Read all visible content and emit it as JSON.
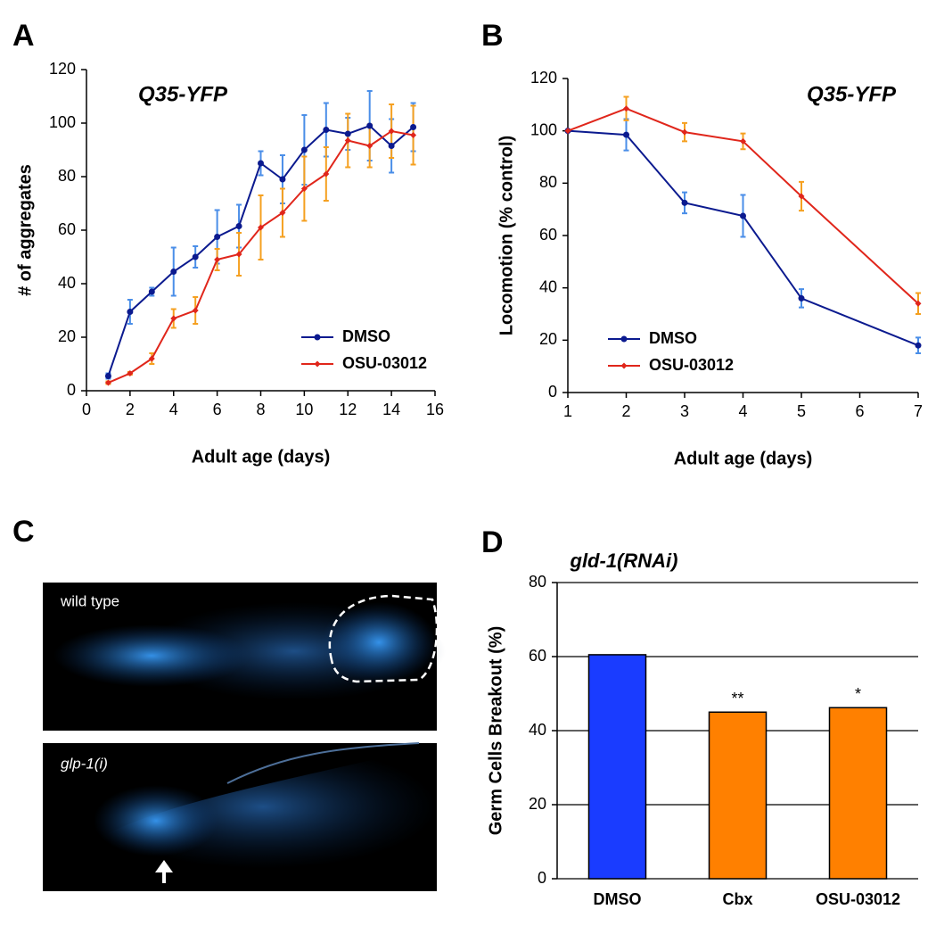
{
  "chart_data": [
    {
      "panel": "A",
      "type": "line",
      "title": "Q35-YFP",
      "x_label": "Adult age (days)",
      "y_label": "# of aggregates",
      "x": [
        1,
        2,
        3,
        4,
        5,
        6,
        7,
        8,
        9,
        10,
        11,
        12,
        13,
        14,
        15
      ],
      "series": [
        {
          "name": "DMSO",
          "color": "#0b1a8f",
          "error_color": "#4a8ee8",
          "marker": "circle",
          "values": [
            5.5,
            29.5,
            37,
            44.5,
            50,
            57.5,
            61.5,
            85,
            79,
            90,
            97.5,
            96,
            99,
            91.5,
            98.5
          ],
          "errors": [
            1,
            4.5,
            1.5,
            9,
            4,
            10,
            8,
            4.5,
            9,
            13,
            10,
            6,
            13,
            10,
            9
          ]
        },
        {
          "name": "OSU-03012",
          "color": "#e0261b",
          "error_color": "#f5a020",
          "marker": "diamond",
          "values": [
            3,
            6.5,
            12,
            27,
            30,
            49,
            51,
            61,
            66.5,
            75.5,
            81,
            93.5,
            91.5,
            97,
            95.5
          ],
          "errors": [
            0.5,
            0.5,
            2,
            3.5,
            5,
            4,
            8,
            12,
            9,
            12,
            10,
            10,
            8,
            10,
            11
          ]
        }
      ],
      "xlim": [
        0,
        16
      ],
      "xticks": [
        0,
        2,
        4,
        6,
        8,
        10,
        12,
        14,
        16
      ],
      "ylim": [
        0,
        120
      ],
      "yticks": [
        0,
        20,
        40,
        60,
        80,
        100,
        120
      ],
      "legend": "lower right"
    },
    {
      "panel": "B",
      "type": "line",
      "title": "Q35-YFP",
      "x_label": "Adult age (days)",
      "y_label": "Locomotion (% control)",
      "x": [
        1,
        2,
        3,
        4,
        5,
        7
      ],
      "series": [
        {
          "name": "DMSO",
          "color": "#0b1a8f",
          "error_color": "#4a8ee8",
          "marker": "circle",
          "values": [
            100,
            98.5,
            72.5,
            67.5,
            36,
            18
          ],
          "errors": [
            0,
            6,
            4,
            8,
            3.5,
            3
          ]
        },
        {
          "name": "OSU-03012",
          "color": "#e0261b",
          "error_color": "#f5a020",
          "marker": "diamond",
          "values": [
            100,
            108.5,
            99.5,
            96,
            75,
            34
          ],
          "errors": [
            0,
            4.5,
            3.5,
            3,
            5.5,
            4
          ]
        }
      ],
      "xlim": [
        1,
        7
      ],
      "xticks": [
        1,
        2,
        3,
        4,
        5,
        6,
        7
      ],
      "ylim": [
        0,
        120
      ],
      "yticks": [
        0,
        20,
        40,
        60,
        80,
        100,
        120
      ],
      "legend": "lower left"
    },
    {
      "panel": "D",
      "type": "bar",
      "title": "gld-1(RNAi)",
      "y_label": "Germ Cells Breakout  (%)",
      "categories": [
        "DMSO",
        "Cbx",
        "OSU-03012"
      ],
      "values": [
        60.5,
        45,
        46.2
      ],
      "colors": [
        "#1a3cff",
        "#ff8000",
        "#ff8000"
      ],
      "significance": [
        null,
        "**",
        "*"
      ],
      "ylim": [
        0,
        80
      ],
      "yticks": [
        0,
        20,
        40,
        60,
        80
      ],
      "grid": true
    }
  ],
  "images": {
    "panel": "C",
    "labels": [
      "wild type",
      "glp-1(i)"
    ]
  }
}
